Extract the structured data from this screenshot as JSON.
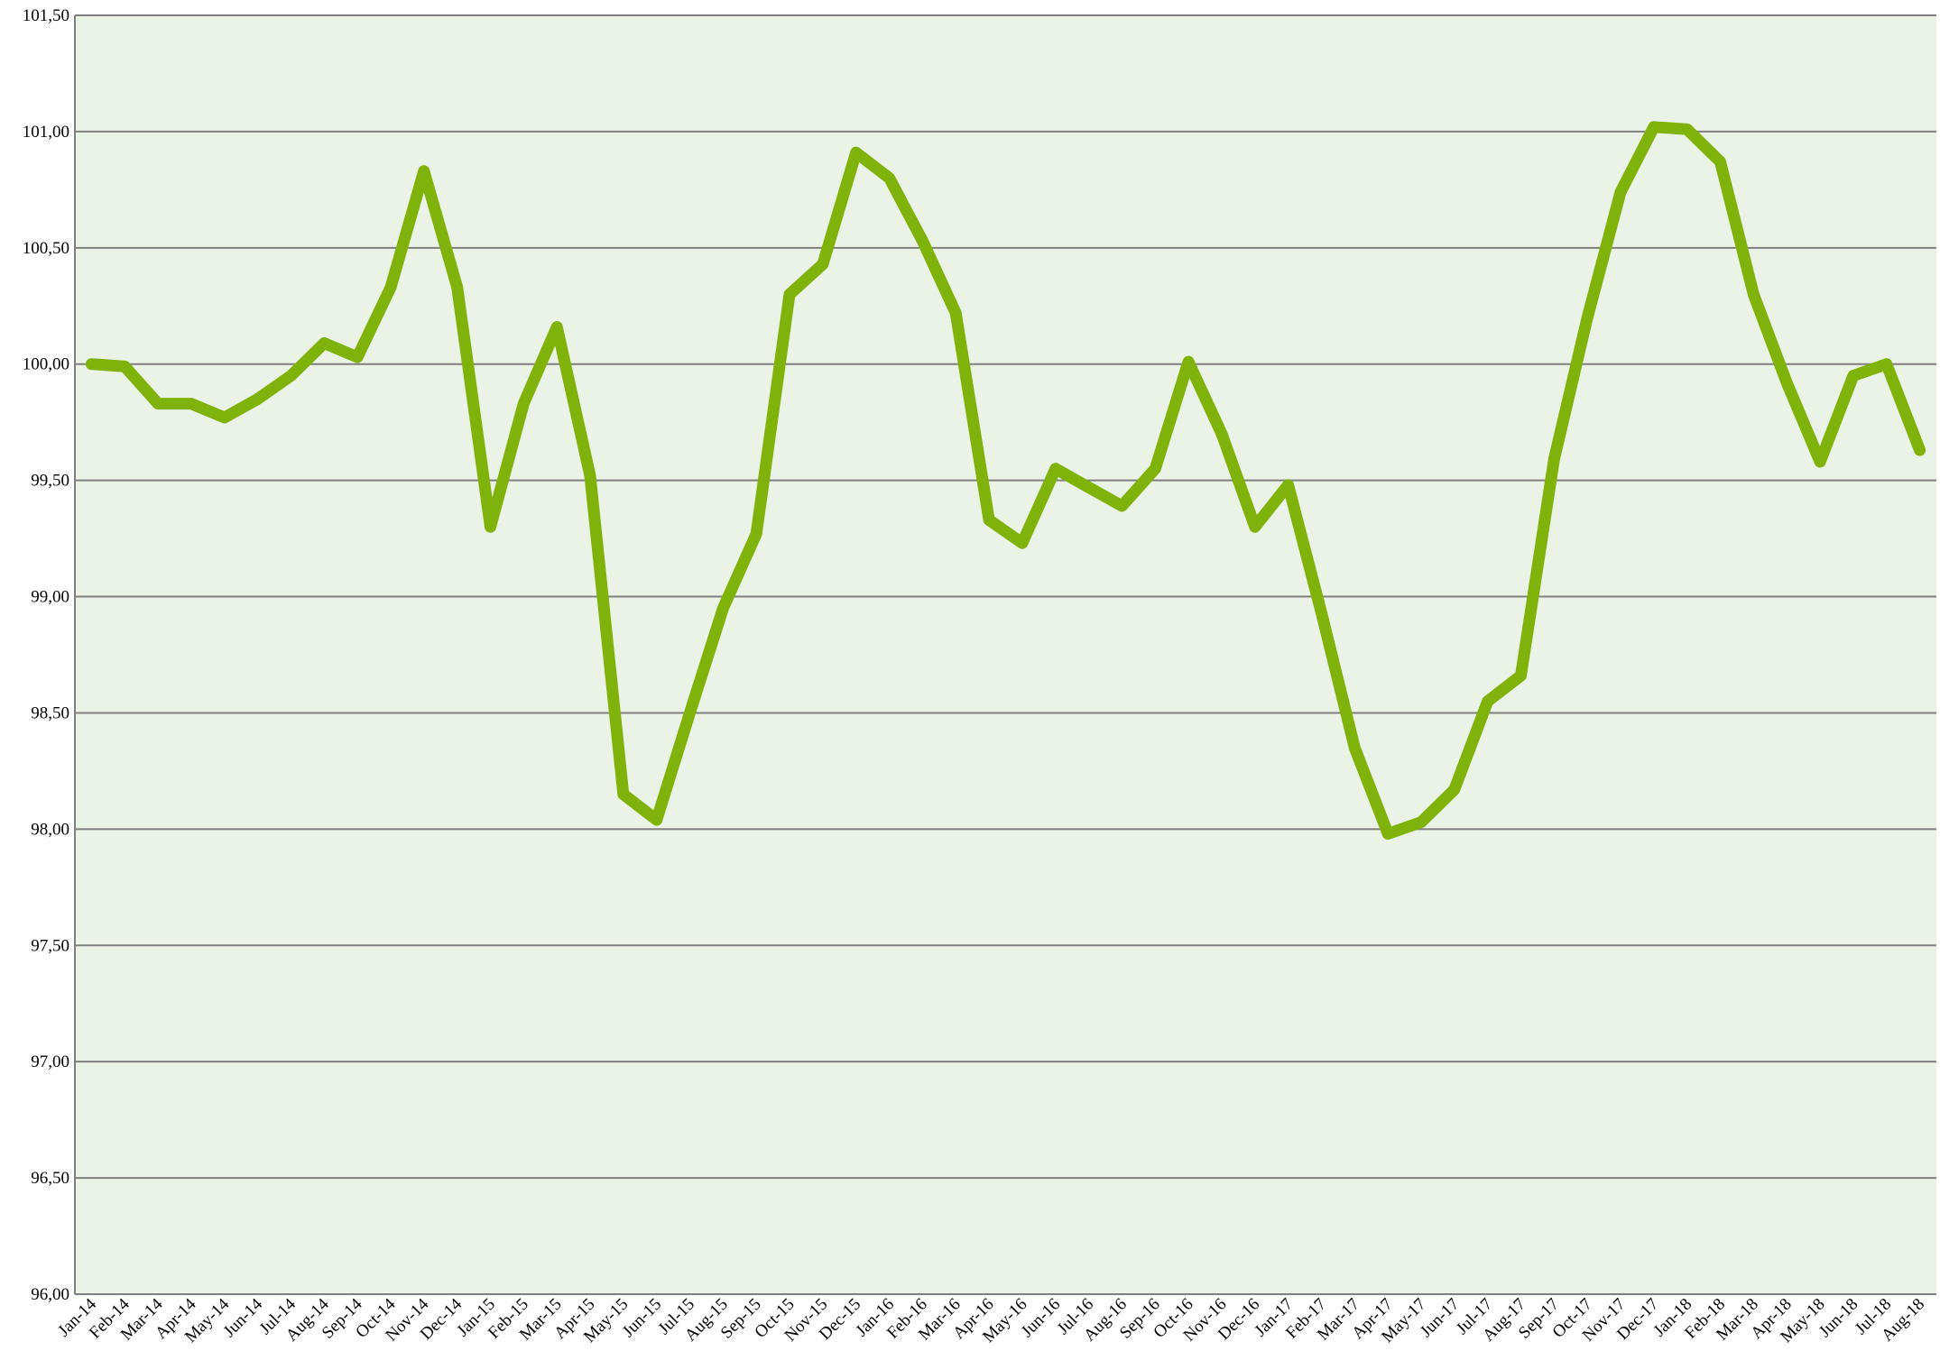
{
  "chart_data": {
    "type": "line",
    "categories": [
      "Jan-14",
      "Feb-14",
      "Mar-14",
      "Apr-14",
      "May-14",
      "Jun-14",
      "Jul-14",
      "Aug-14",
      "Sep-14",
      "Oct-14",
      "Nov-14",
      "Dec-14",
      "Jan-15",
      "Feb-15",
      "Mar-15",
      "Apr-15",
      "May-15",
      "Jun-15",
      "Jul-15",
      "Aug-15",
      "Sep-15",
      "Oct-15",
      "Nov-15",
      "Dec-15",
      "Jan-16",
      "Feb-16",
      "Mar-16",
      "Apr-16",
      "May-16",
      "Jun-16",
      "Jul-16",
      "Aug-16",
      "Sep-16",
      "Oct-16",
      "Nov-16",
      "Dec-16",
      "Jan-17",
      "Feb-17",
      "Mar-17",
      "Apr-17",
      "May-17",
      "Jun-17",
      "Jul-17",
      "Aug-17",
      "Sep-17",
      "Oct-17",
      "Nov-17",
      "Dec-17",
      "Jan-18",
      "Feb-18",
      "Mar-18",
      "Apr-18",
      "May-18",
      "Jun-18",
      "Jul-18",
      "Aug-18"
    ],
    "values": [
      100.0,
      99.99,
      99.83,
      99.83,
      99.77,
      99.85,
      99.95,
      100.09,
      100.03,
      100.33,
      100.83,
      100.33,
      99.3,
      99.83,
      100.16,
      99.52,
      98.15,
      98.04,
      98.5,
      98.95,
      99.27,
      100.3,
      100.43,
      100.91,
      100.8,
      100.53,
      100.22,
      99.33,
      99.23,
      99.55,
      99.47,
      99.39,
      99.55,
      100.01,
      99.7,
      99.3,
      99.48,
      98.93,
      98.35,
      97.98,
      98.03,
      98.17,
      98.55,
      98.66,
      99.59,
      100.2,
      100.74,
      101.02,
      101.01,
      100.87,
      100.3,
      99.92,
      99.58,
      99.95,
      100.0,
      99.63
    ],
    "color": "#7fb20a",
    "background": "#ebf3e6",
    "ylim": [
      96,
      101.5
    ],
    "yticks": [
      {
        "value": 96,
        "label": "96,00"
      },
      {
        "value": 96.5,
        "label": "96,50"
      },
      {
        "value": 97,
        "label": "97,00"
      },
      {
        "value": 97.5,
        "label": "97,50"
      },
      {
        "value": 98,
        "label": "98,00"
      },
      {
        "value": 98.5,
        "label": "98,50"
      },
      {
        "value": 99,
        "label": "99,00"
      },
      {
        "value": 99.5,
        "label": "99,50"
      },
      {
        "value": 100,
        "label": "100,00"
      },
      {
        "value": 100.5,
        "label": "100,50"
      },
      {
        "value": 101,
        "label": "101,00"
      },
      {
        "value": 101.5,
        "label": "101,50"
      }
    ],
    "grid": true
  }
}
